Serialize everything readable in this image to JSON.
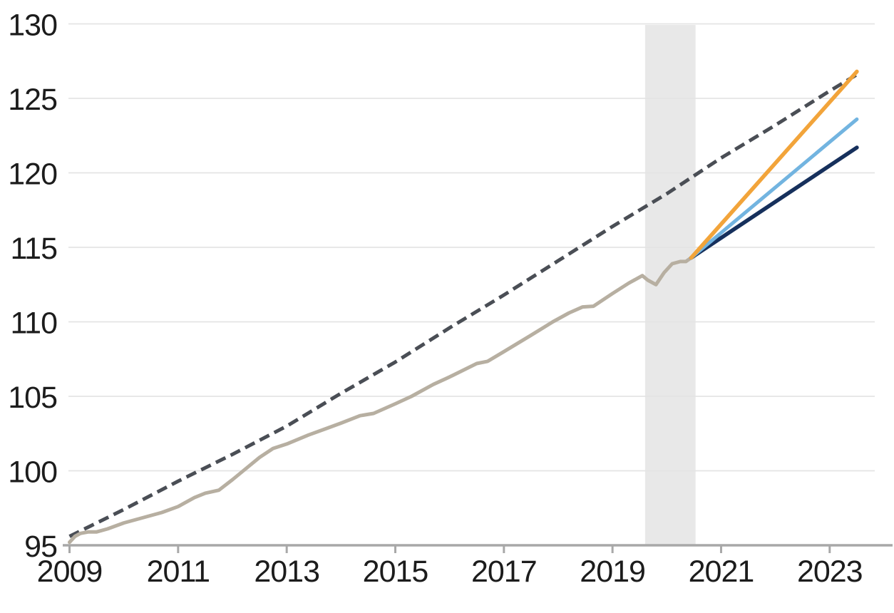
{
  "page": {
    "background": "#ffffff"
  },
  "chart_data": {
    "type": "line",
    "title": "",
    "xlabel": "",
    "ylabel": "",
    "x_ticks": [
      2009,
      2011,
      2013,
      2015,
      2017,
      2019,
      2021,
      2023
    ],
    "y_ticks": [
      95,
      100,
      105,
      110,
      115,
      120,
      125,
      130
    ],
    "xlim": [
      2008.98,
      2023.83
    ],
    "ylim": [
      95,
      130
    ],
    "grid": "horizontal-only",
    "legend": "none",
    "colors": {
      "dashed_trend": "#4a4e55",
      "actual": "#b7afa1",
      "projection_orange": "#f2a43a",
      "projection_light_blue": "#72b4e0",
      "projection_dark_blue": "#16305c",
      "shaded_band": "#e8e8e8",
      "gridline": "#e4e4e4",
      "axis": "#a8a8a8",
      "tick_label": "#1c1c1c"
    },
    "shaded_band": {
      "from": 2019.6,
      "to": 2020.53
    },
    "series": [
      {
        "name": "dashed-trend-line",
        "style": "dashed",
        "color": "#4a4e55",
        "width": 5,
        "dash": "15 8",
        "points": [
          [
            2009.0,
            95.6
          ],
          [
            2010.0,
            97.4
          ],
          [
            2011.0,
            99.3
          ],
          [
            2012.0,
            101.1
          ],
          [
            2013.0,
            103.0
          ],
          [
            2014.0,
            105.2
          ],
          [
            2015.0,
            107.3
          ],
          [
            2016.0,
            109.6
          ],
          [
            2017.0,
            111.8
          ],
          [
            2018.0,
            114.1
          ],
          [
            2019.0,
            116.4
          ],
          [
            2020.0,
            118.6
          ],
          [
            2021.0,
            121.0
          ],
          [
            2022.0,
            123.2
          ],
          [
            2023.0,
            125.5
          ],
          [
            2023.5,
            126.6
          ]
        ]
      },
      {
        "name": "actual-history-line",
        "style": "solid",
        "color": "#b7afa1",
        "width": 5,
        "points": [
          [
            2009.0,
            95.2
          ],
          [
            2009.1,
            95.6
          ],
          [
            2009.2,
            95.8
          ],
          [
            2009.35,
            95.9
          ],
          [
            2009.5,
            95.9
          ],
          [
            2009.7,
            96.1
          ],
          [
            2010.0,
            96.5
          ],
          [
            2010.3,
            96.8
          ],
          [
            2010.7,
            97.2
          ],
          [
            2011.0,
            97.6
          ],
          [
            2011.3,
            98.2
          ],
          [
            2011.5,
            98.5
          ],
          [
            2011.75,
            98.7
          ],
          [
            2012.0,
            99.4
          ],
          [
            2012.2,
            100.0
          ],
          [
            2012.5,
            100.9
          ],
          [
            2012.75,
            101.5
          ],
          [
            2013.0,
            101.8
          ],
          [
            2013.4,
            102.4
          ],
          [
            2013.7,
            102.8
          ],
          [
            2014.0,
            103.2
          ],
          [
            2014.35,
            103.7
          ],
          [
            2014.6,
            103.85
          ],
          [
            2015.0,
            104.5
          ],
          [
            2015.3,
            105.0
          ],
          [
            2015.7,
            105.8
          ],
          [
            2016.0,
            106.3
          ],
          [
            2016.5,
            107.2
          ],
          [
            2016.7,
            107.35
          ],
          [
            2017.0,
            108.0
          ],
          [
            2017.5,
            109.1
          ],
          [
            2017.9,
            110.0
          ],
          [
            2018.2,
            110.6
          ],
          [
            2018.45,
            111.0
          ],
          [
            2018.65,
            111.05
          ],
          [
            2019.0,
            111.9
          ],
          [
            2019.3,
            112.6
          ],
          [
            2019.55,
            113.1
          ],
          [
            2019.65,
            112.8
          ],
          [
            2019.8,
            112.5
          ],
          [
            2019.95,
            113.3
          ],
          [
            2020.1,
            113.9
          ],
          [
            2020.25,
            114.05
          ],
          [
            2020.35,
            114.05
          ],
          [
            2020.45,
            114.3
          ]
        ]
      },
      {
        "name": "projection-dark-blue-line",
        "style": "solid",
        "color": "#16305c",
        "width": 5.5,
        "points": [
          [
            2020.45,
            114.3
          ],
          [
            2023.5,
            121.7
          ]
        ]
      },
      {
        "name": "projection-light-blue-line",
        "style": "solid",
        "color": "#72b4e0",
        "width": 5,
        "points": [
          [
            2020.45,
            114.3
          ],
          [
            2023.5,
            123.6
          ]
        ]
      },
      {
        "name": "projection-orange-line",
        "style": "solid",
        "color": "#f2a43a",
        "width": 5.5,
        "points": [
          [
            2020.45,
            114.3
          ],
          [
            2023.5,
            126.8
          ]
        ]
      }
    ]
  }
}
